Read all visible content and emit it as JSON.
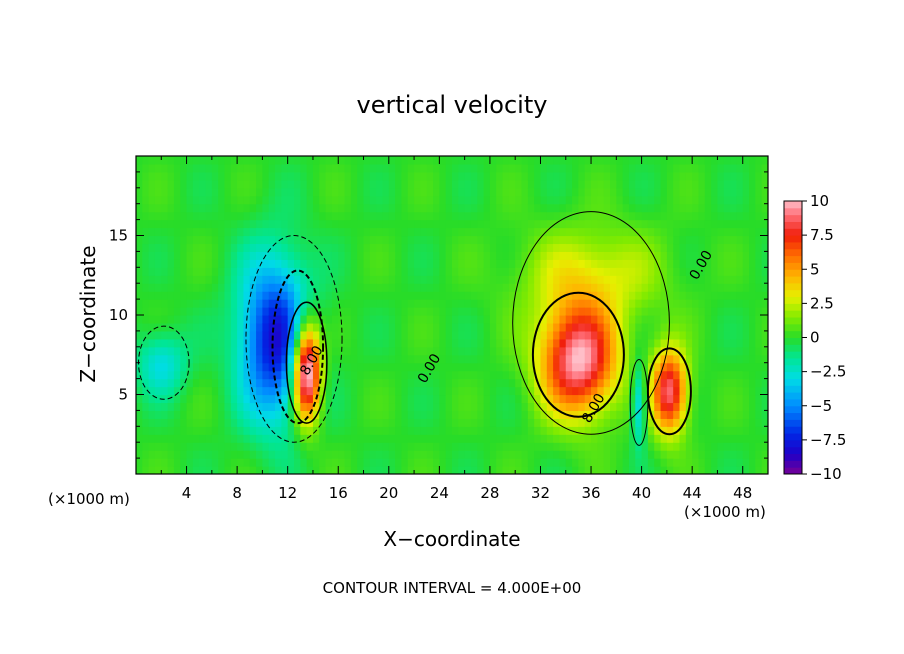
{
  "chart_data": {
    "type": "heatmap",
    "title": "vertical velocity",
    "xlabel": "X−coordinate",
    "ylabel": "Z−coordinate",
    "x_unit_label": "(×1000 m)",
    "footer": "CONTOUR INTERVAL = 4.000E+00",
    "xlim": [
      0,
      50
    ],
    "ylim": [
      0,
      20
    ],
    "x_ticks": [
      4,
      8,
      12,
      16,
      20,
      24,
      28,
      32,
      36,
      40,
      44,
      48
    ],
    "y_ticks": [
      5,
      10,
      15
    ],
    "colorbar": {
      "range": [
        -10,
        10
      ],
      "ticks": [
        {
          "value": 10,
          "label": "10"
        },
        {
          "value": 7.5,
          "label": "7.5"
        },
        {
          "value": 5,
          "label": "5"
        },
        {
          "value": 2.5,
          "label": "2.5"
        },
        {
          "value": 0,
          "label": "0"
        },
        {
          "value": -2.5,
          "label": "−2.5"
        },
        {
          "value": -5,
          "label": "−5"
        },
        {
          "value": -7.5,
          "label": "−7.5"
        },
        {
          "value": -10,
          "label": "−10"
        }
      ]
    },
    "contour_labels": [
      {
        "text": "0.00",
        "x": 45,
        "y": 13
      },
      {
        "text": "0.00",
        "x": 23.5,
        "y": 6.5
      },
      {
        "text": "8.00",
        "x": 14.2,
        "y": 7
      },
      {
        "text": "8.00",
        "x": 36.5,
        "y": 4
      }
    ],
    "features": [
      {
        "kind": "updraft",
        "x": 35,
        "z": 7.2,
        "sx": 3.0,
        "sz": 3.4,
        "amp": 10
      },
      {
        "kind": "updraft",
        "x": 42.2,
        "z": 5.2,
        "sx": 1.4,
        "sz": 2.6,
        "amp": 9
      },
      {
        "kind": "updraft",
        "x": 36,
        "z": 12.5,
        "sx": 5.5,
        "sz": 3.0,
        "amp": 3
      },
      {
        "kind": "updraft",
        "x": 13.5,
        "z": 6.5,
        "sx": 1.1,
        "sz": 3.0,
        "amp": 13
      },
      {
        "kind": "downdraft",
        "x": 11,
        "z": 8.5,
        "sx": 2.8,
        "sz": 5.0,
        "amp": -8
      },
      {
        "kind": "downdraft",
        "x": 2,
        "z": 7,
        "sx": 2.0,
        "sz": 2.0,
        "amp": -3
      },
      {
        "kind": "downdraft",
        "x": 39.8,
        "z": 4.5,
        "sx": 0.6,
        "sz": 2.5,
        "amp": -4
      }
    ]
  }
}
